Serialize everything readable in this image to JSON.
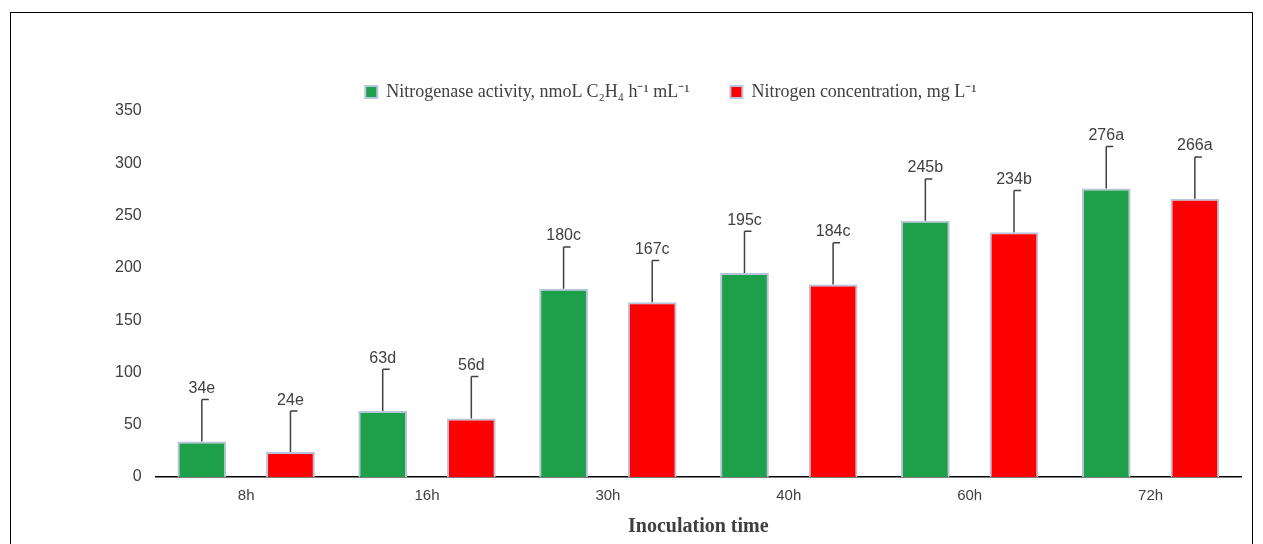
{
  "chart_data": {
    "type": "bar",
    "xlabel": "Inoculation time",
    "categories": [
      "8h",
      "16h",
      "30h",
      "40h",
      "60h",
      "72h"
    ],
    "series": [
      {
        "name": "Nitrogenase activity, nmoL C₂H₄ h⁻¹ mL⁻¹",
        "color": "#1ea04b",
        "values": [
          34,
          63,
          180,
          195,
          245,
          276
        ],
        "errors": [
          [
            34,
            74
          ],
          [
            63,
            103
          ],
          [
            180,
            220
          ],
          [
            195,
            235
          ],
          [
            245,
            285
          ],
          [
            276,
            316
          ]
        ],
        "value_labels": [
          "34e",
          "63d",
          "180c",
          "195c",
          "245b",
          "276a"
        ]
      },
      {
        "name": "Nitrogen concentration, mg L⁻¹",
        "color": "#ff0000",
        "values": [
          24,
          56,
          167,
          184,
          234,
          266
        ],
        "errors": [
          [
            24,
            63
          ],
          [
            56,
            96
          ],
          [
            167,
            207
          ],
          [
            184,
            224
          ],
          [
            234,
            274
          ],
          [
            266,
            306
          ]
        ],
        "value_labels": [
          "24e",
          "56d",
          "167c",
          "184c",
          "234b",
          "266a"
        ]
      }
    ],
    "ylim": [
      0,
      350
    ],
    "yticks": [
      0,
      50,
      100,
      150,
      200,
      250,
      300,
      350
    ],
    "grid": false,
    "legend": "top"
  }
}
